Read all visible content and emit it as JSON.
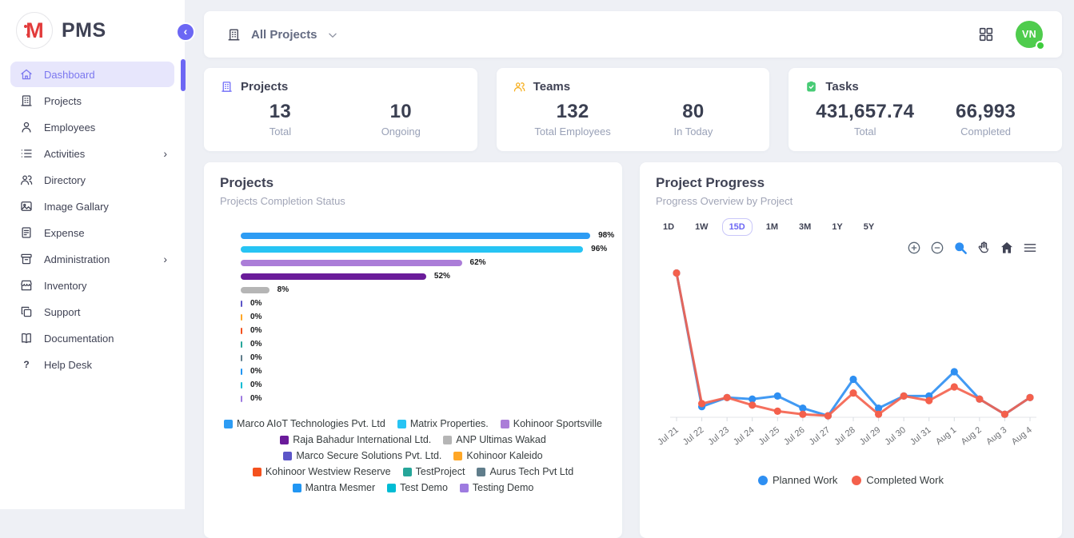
{
  "app": {
    "name": "PMS",
    "logo_letter": "M"
  },
  "sidebar": {
    "items": [
      {
        "label": "Dashboard",
        "icon": "home",
        "active": true,
        "submenu": false
      },
      {
        "label": "Projects",
        "icon": "building",
        "active": false,
        "submenu": false
      },
      {
        "label": "Employees",
        "icon": "person",
        "active": false,
        "submenu": false
      },
      {
        "label": "Activities",
        "icon": "list",
        "active": false,
        "submenu": true
      },
      {
        "label": "Directory",
        "icon": "people",
        "active": false,
        "submenu": false
      },
      {
        "label": "Image Gallary",
        "icon": "image",
        "active": false,
        "submenu": false
      },
      {
        "label": "Expense",
        "icon": "receipt",
        "active": false,
        "submenu": false
      },
      {
        "label": "Administration",
        "icon": "archive",
        "active": false,
        "submenu": true
      },
      {
        "label": "Inventory",
        "icon": "store",
        "active": false,
        "submenu": false
      },
      {
        "label": "Support",
        "icon": "copy",
        "active": false,
        "submenu": false
      },
      {
        "label": "Documentation",
        "icon": "book",
        "active": false,
        "submenu": false
      },
      {
        "label": "Help Desk",
        "icon": "question",
        "active": false,
        "submenu": false
      }
    ]
  },
  "topbar": {
    "selector_label": "All Projects",
    "avatar_initials": "VN",
    "avatar_color": "#4FCC4D"
  },
  "stats": [
    {
      "title": "Projects",
      "icon_color": "#6D6AF8",
      "metrics": [
        {
          "value": "13",
          "label": "Total"
        },
        {
          "value": "10",
          "label": "Ongoing"
        }
      ]
    },
    {
      "title": "Teams",
      "icon_color": "#F6AE1C",
      "metrics": [
        {
          "value": "132",
          "label": "Total Employees"
        },
        {
          "value": "80",
          "label": "In Today"
        }
      ]
    },
    {
      "title": "Tasks",
      "icon_color": "#47CB75",
      "metrics": [
        {
          "value": "431,657.74",
          "label": "Total"
        },
        {
          "value": "66,993",
          "label": "Completed"
        }
      ]
    }
  ],
  "projects_panel": {
    "title": "Projects",
    "subtitle": "Projects Completion Status"
  },
  "progress_panel": {
    "title": "Project Progress",
    "subtitle": "Progress Overview by Project",
    "ranges": [
      "1D",
      "1W",
      "15D",
      "1M",
      "3M",
      "1Y",
      "5Y"
    ],
    "active_range": "15D",
    "toolbar": [
      "zoom-in",
      "zoom-out",
      "selection-zoom",
      "pan",
      "home",
      "menu"
    ],
    "active_tool": "selection-zoom"
  },
  "chart_data": [
    {
      "type": "bar",
      "orientation": "horizontal",
      "title": "Projects Completion Status",
      "unit": "%",
      "xlim": [
        0,
        100
      ],
      "categories": [
        "Marco AIoT Technologies Pvt. Ltd",
        "Matrix Properties.",
        "Kohinoor Sportsville",
        "Raja Bahadur International Ltd.",
        "ANP Ultimas Wakad",
        "Marco Secure Solutions Pvt. Ltd.",
        "Kohinoor Kaleido",
        "Kohinoor Westview Reserve",
        "TestProject",
        "Aurus Tech Pvt Ltd",
        "Mantra Mesmer",
        "Test Demo",
        "Testing Demo"
      ],
      "values": [
        98,
        96,
        62,
        52,
        8,
        0,
        0,
        0,
        0,
        0,
        0,
        0,
        0
      ],
      "colors": [
        "#2D9CF4",
        "#27C4F4",
        "#AB7DD8",
        "#6A1B9A",
        "#B5B5B5",
        "#5C55C8",
        "#FFA726",
        "#F4511E",
        "#26A69A",
        "#607D8B",
        "#2196F3",
        "#00BCD4",
        "#9E7BE0"
      ],
      "legend_position": "bottom"
    },
    {
      "type": "line",
      "title": "Progress Overview by Project",
      "x": [
        "Jul 21",
        "Jul 22",
        "Jul 23",
        "Jul 24",
        "Jul 25",
        "Jul 26",
        "Jul 27",
        "Jul 28",
        "Jul 29",
        "Jul 30",
        "Jul 31",
        "Aug 1",
        "Aug 2",
        "Aug 3",
        "Aug 4"
      ],
      "ylim": [
        0,
        100
      ],
      "y_axis_visible": false,
      "legend_position": "bottom",
      "series": [
        {
          "name": "Planned Work",
          "color": "#2E8FF2",
          "values": [
            95,
            7,
            13,
            12,
            14,
            6,
            1,
            25,
            6,
            14,
            14,
            30,
            12,
            2,
            13
          ]
        },
        {
          "name": "Completed Work",
          "color": "#F4604C",
          "values": [
            95,
            9,
            13,
            8,
            4,
            2,
            1,
            16,
            2,
            14,
            11,
            20,
            12,
            2,
            13
          ]
        }
      ]
    }
  ]
}
